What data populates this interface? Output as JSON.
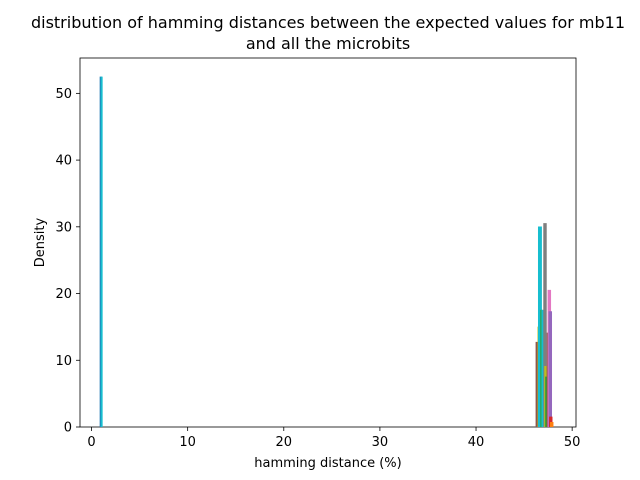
{
  "chart_data": {
    "type": "line",
    "title_line1": "distribution of hamming distances between the expected values for mb11",
    "title_line2": "and all the microbits",
    "xlabel": "hamming distance (%)",
    "ylabel": "Density",
    "xlim": [
      -1.2,
      50.4
    ],
    "ylim": [
      0,
      55.3
    ],
    "x_ticks": [
      0,
      10,
      20,
      30,
      40,
      50
    ],
    "y_ticks": [
      0,
      10,
      20,
      30,
      40,
      50
    ],
    "grid": false,
    "series": [
      {
        "color": "#1f77b4",
        "x": [
          0.95,
          0.95
        ],
        "y": [
          0,
          52.5
        ]
      },
      {
        "color": "#17becf",
        "x": [
          1.05,
          1.05
        ],
        "y": [
          0,
          52.5
        ]
      },
      {
        "color": "#8c564b",
        "x": [
          46.3,
          46.3,
          46.45,
          46.45
        ],
        "y": [
          0,
          12.6,
          12.6,
          0
        ]
      },
      {
        "color": "#bcbd22",
        "x": [
          46.5,
          46.5,
          46.65,
          46.65
        ],
        "y": [
          0,
          14.9,
          14.9,
          0
        ]
      },
      {
        "color": "#17becf",
        "x": [
          46.55,
          46.55,
          46.75,
          46.75
        ],
        "y": [
          0,
          29.9,
          29.9,
          0
        ]
      },
      {
        "color": "#2ca02c",
        "x": [
          46.8,
          46.8,
          47.05,
          47.05
        ],
        "y": [
          0,
          17.4,
          17.4,
          0
        ]
      },
      {
        "color": "#17becf",
        "x": [
          46.9,
          46.9,
          47.1,
          47.1
        ],
        "y": [
          0,
          17.4,
          17.4,
          0
        ]
      },
      {
        "color": "#7f7f7f",
        "x": [
          47.1,
          47.1,
          47.25,
          47.25
        ],
        "y": [
          0,
          30.4,
          30.4,
          0
        ]
      },
      {
        "color": "#bcbd22",
        "x": [
          47.2,
          47.2,
          47.35,
          47.35
        ],
        "y": [
          0,
          9.0,
          9.0,
          0
        ]
      },
      {
        "color": "#2ca02c",
        "x": [
          47.3,
          47.3,
          47.45,
          47.45
        ],
        "y": [
          0,
          7.4,
          7.4,
          0
        ]
      },
      {
        "color": "#8c564b",
        "x": [
          47.45,
          47.45,
          47.6,
          47.6
        ],
        "y": [
          0,
          14.0,
          14.0,
          0
        ]
      },
      {
        "color": "#e377c2",
        "x": [
          47.55,
          47.55,
          47.7,
          47.7
        ],
        "y": [
          0,
          20.4,
          20.4,
          0
        ]
      },
      {
        "color": "#9467bd",
        "x": [
          47.65,
          47.65,
          47.8,
          47.8
        ],
        "y": [
          0,
          17.2,
          17.2,
          0
        ]
      },
      {
        "color": "#d62728",
        "x": [
          47.7,
          47.7,
          47.85,
          47.85
        ],
        "y": [
          0,
          1.4,
          1.4,
          0
        ]
      },
      {
        "color": "#ff7f0e",
        "x": [
          47.8,
          47.8,
          47.95,
          47.95
        ],
        "y": [
          0,
          0.6,
          0.6,
          0
        ]
      }
    ]
  }
}
